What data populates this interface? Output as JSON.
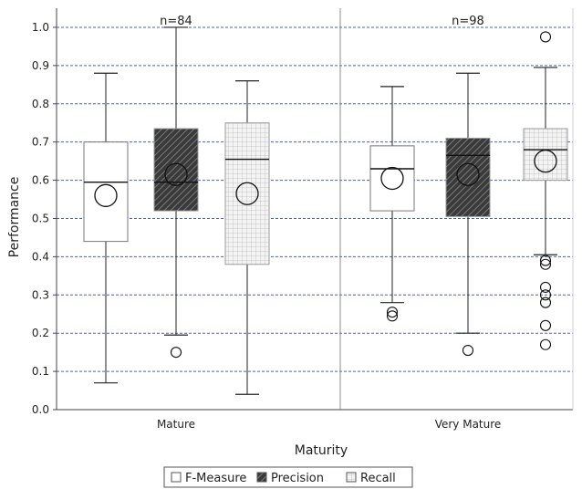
{
  "chart_data": {
    "type": "box",
    "xlabel": "Maturity",
    "ylabel": "Performance",
    "ylim": [
      0,
      1.05
    ],
    "yticks": [
      "0.0",
      "0.1",
      "0.2",
      "0.3",
      "0.4",
      "0.5",
      "0.6",
      "0.7",
      "0.8",
      "0.9",
      "1.0"
    ],
    "grid": true,
    "legend_position": "bottom",
    "series_names": [
      "F-Measure",
      "Precision",
      "Recall"
    ],
    "groups": [
      {
        "label": "Mature",
        "n_label": "n=84",
        "boxes": [
          {
            "series": "F-Measure",
            "whisker_low": 0.07,
            "q1": 0.44,
            "median": 0.595,
            "q3": 0.7,
            "whisker_high": 0.88,
            "mean": 0.56,
            "outliers": []
          },
          {
            "series": "Precision",
            "whisker_low": 0.195,
            "q1": 0.52,
            "median": 0.595,
            "q3": 0.735,
            "whisker_high": 1.0,
            "mean": 0.615,
            "outliers": [
              0.15
            ]
          },
          {
            "series": "Recall",
            "whisker_low": 0.04,
            "q1": 0.38,
            "median": 0.655,
            "q3": 0.75,
            "whisker_high": 0.86,
            "mean": 0.565,
            "outliers": []
          }
        ]
      },
      {
        "label": "Very Mature",
        "n_label": "n=98",
        "boxes": [
          {
            "series": "F-Measure",
            "whisker_low": 0.28,
            "q1": 0.52,
            "median": 0.63,
            "q3": 0.69,
            "whisker_high": 0.845,
            "mean": 0.605,
            "outliers": [
              0.255,
              0.245
            ]
          },
          {
            "series": "Precision",
            "whisker_low": 0.2,
            "q1": 0.505,
            "median": 0.665,
            "q3": 0.71,
            "whisker_high": 0.88,
            "mean": 0.615,
            "outliers": [
              0.155
            ]
          },
          {
            "series": "Recall",
            "whisker_low": 0.405,
            "q1": 0.6,
            "median": 0.68,
            "q3": 0.735,
            "whisker_high": 0.895,
            "mean": 0.65,
            "outliers": [
              0.975,
              0.39,
              0.38,
              0.32,
              0.3,
              0.28,
              0.22,
              0.17
            ]
          }
        ]
      }
    ]
  },
  "colors": {
    "grid": "#4a62b0",
    "frame": "#888888",
    "precision_fill": "#4a4a4a",
    "recall_fill": "#f0f0f0"
  },
  "legend": {
    "items": [
      {
        "label": "F-Measure",
        "pattern": "plain"
      },
      {
        "label": "Precision",
        "pattern": "dark-hatch"
      },
      {
        "label": "Recall",
        "pattern": "grid"
      }
    ]
  }
}
